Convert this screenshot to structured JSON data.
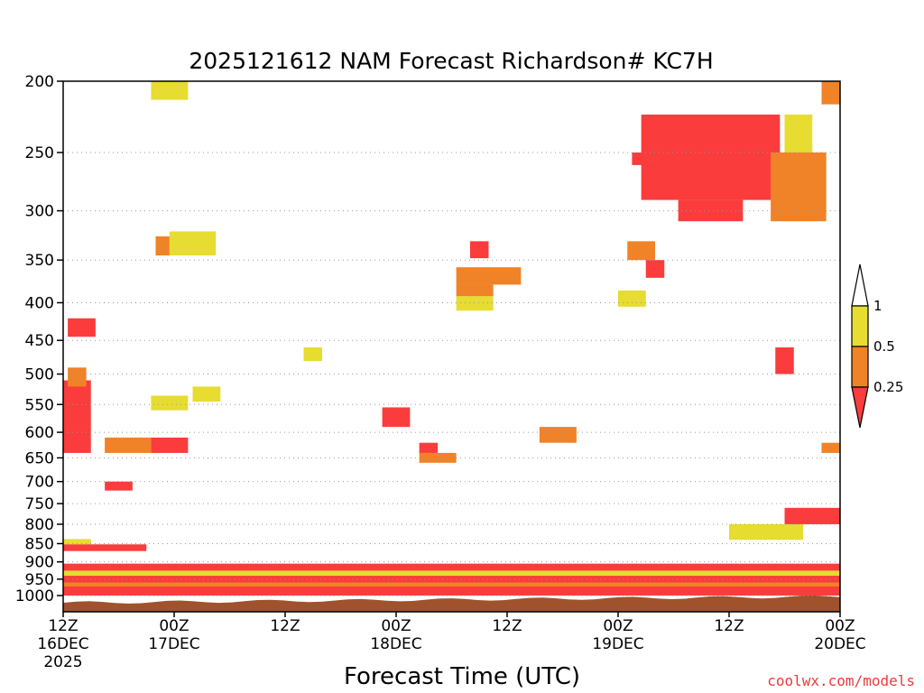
{
  "chart_data": {
    "type": "heatmap",
    "title": "2025121612 NAM Forecast Richardson# KC7H",
    "xlabel": "Forecast Time (UTC)",
    "ylabel": "",
    "x_range_hours": [
      0,
      84
    ],
    "xticks": [
      {
        "hour": 0,
        "time": "12Z",
        "date": "16DEC",
        "year": "2025"
      },
      {
        "hour": 12,
        "time": "00Z",
        "date": "17DEC",
        "year": ""
      },
      {
        "hour": 24,
        "time": "12Z",
        "date": "",
        "year": ""
      },
      {
        "hour": 36,
        "time": "00Z",
        "date": "18DEC",
        "year": ""
      },
      {
        "hour": 48,
        "time": "12Z",
        "date": "",
        "year": ""
      },
      {
        "hour": 60,
        "time": "00Z",
        "date": "19DEC",
        "year": ""
      },
      {
        "hour": 72,
        "time": "12Z",
        "date": "",
        "year": ""
      },
      {
        "hour": 84,
        "time": "00Z",
        "date": "20DEC",
        "year": ""
      }
    ],
    "y_axis": {
      "unit": "hPa",
      "scale": "log-pressure",
      "range": [
        200,
        1030
      ],
      "ticks": [
        200,
        250,
        300,
        350,
        400,
        450,
        500,
        550,
        600,
        650,
        700,
        750,
        800,
        850,
        900,
        950,
        1000
      ]
    },
    "grid": "dotted horizontal at pressure ticks",
    "legend": {
      "position": "right",
      "colorbar": [
        {
          "range": "0 - 0.25",
          "label": "0.25",
          "color": "#fa3c3c"
        },
        {
          "range": "0.25 - 0.5",
          "label": "0.5",
          "color": "#f08228"
        },
        {
          "range": "0.5 - 1",
          "label": "1",
          "color": "#e6dc32"
        },
        {
          "range": "> 1",
          "label": "",
          "color": "#ffffff"
        }
      ]
    },
    "ground_color": "#a0522d",
    "regions": [
      {
        "category": "0.5 - 1",
        "t": [
          0,
          3
        ],
        "p": [
          838,
          852
        ]
      },
      {
        "category": "0 - 0.25",
        "t": [
          0,
          9
        ],
        "p": [
          852,
          870
        ]
      },
      {
        "category": "0 - 0.25",
        "t": [
          0,
          84
        ],
        "p": [
          905,
          1000
        ]
      },
      {
        "category": "0.5 - 1",
        "t": [
          0,
          84
        ],
        "p": [
          925,
          940
        ]
      },
      {
        "category": "0.25 - 0.5",
        "t": [
          0,
          84
        ],
        "p": [
          960,
          972
        ]
      },
      {
        "category": "0 - 0.25",
        "t": [
          0,
          3
        ],
        "p": [
          510,
          640
        ]
      },
      {
        "category": "0 - 0.25",
        "t": [
          0.5,
          3.5
        ],
        "p": [
          420,
          445
        ]
      },
      {
        "category": "0.25 - 0.5",
        "t": [
          0.5,
          2.5
        ],
        "p": [
          490,
          520
        ]
      },
      {
        "category": "0.25 - 0.5",
        "t": [
          4.5,
          9.5
        ],
        "p": [
          610,
          640
        ]
      },
      {
        "category": "0 - 0.25",
        "t": [
          9.5,
          13.5
        ],
        "p": [
          610,
          640
        ]
      },
      {
        "category": "0.5 - 1",
        "t": [
          9.5,
          13.5
        ],
        "p": [
          535,
          560
        ]
      },
      {
        "category": "0 - 0.25",
        "t": [
          4.5,
          7.5
        ],
        "p": [
          700,
          720
        ]
      },
      {
        "category": "0.5 - 1",
        "t": [
          9.5,
          13.5
        ],
        "p": [
          200,
          212
        ]
      },
      {
        "category": "0.25 - 0.5",
        "t": [
          10,
          11.5
        ],
        "p": [
          325,
          345
        ]
      },
      {
        "category": "0.5 - 1",
        "t": [
          11.5,
          16.5
        ],
        "p": [
          320,
          345
        ]
      },
      {
        "category": "0.5 - 1",
        "t": [
          14,
          17
        ],
        "p": [
          520,
          545
        ]
      },
      {
        "category": "0.5 - 1",
        "t": [
          26,
          28
        ],
        "p": [
          460,
          480
        ]
      },
      {
        "category": "0.25 - 0.5",
        "t": [
          42.5,
          49.5
        ],
        "p": [
          358,
          378
        ]
      },
      {
        "category": "0.25 - 0.5",
        "t": [
          42.5,
          46.5
        ],
        "p": [
          378,
          392
        ]
      },
      {
        "category": "0.5 - 1",
        "t": [
          42.5,
          46.5
        ],
        "p": [
          392,
          410
        ]
      },
      {
        "category": "0 - 0.25",
        "t": [
          44,
          46
        ],
        "p": [
          330,
          348
        ]
      },
      {
        "category": "0 - 0.25",
        "t": [
          34.5,
          37.5
        ],
        "p": [
          555,
          590
        ]
      },
      {
        "category": "0.25 - 0.5",
        "t": [
          38.5,
          42.5
        ],
        "p": [
          640,
          660
        ]
      },
      {
        "category": "0 - 0.25",
        "t": [
          38.5,
          40.5
        ],
        "p": [
          620,
          640
        ]
      },
      {
        "category": "0.25 - 0.5",
        "t": [
          51.5,
          55.5
        ],
        "p": [
          590,
          620
        ]
      },
      {
        "category": "0 - 0.25",
        "t": [
          61.5,
          66.5
        ],
        "p": [
          250,
          260
        ]
      },
      {
        "category": "0 - 0.25",
        "t": [
          62.5,
          77.5
        ],
        "p": [
          222,
          290
        ]
      },
      {
        "category": "0 - 0.25",
        "t": [
          66.5,
          73.5
        ],
        "p": [
          290,
          310
        ]
      },
      {
        "category": "0.25 - 0.5",
        "t": [
          76.5,
          82.5
        ],
        "p": [
          250,
          310
        ]
      },
      {
        "category": "0.5 - 1",
        "t": [
          78,
          81
        ],
        "p": [
          222,
          250
        ]
      },
      {
        "category": "0.25 - 0.5",
        "t": [
          82,
          84
        ],
        "p": [
          200,
          215
        ]
      },
      {
        "category": "0.25 - 0.5",
        "t": [
          61,
          64
        ],
        "p": [
          330,
          350
        ]
      },
      {
        "category": "0 - 0.25",
        "t": [
          63,
          65
        ],
        "p": [
          350,
          370
        ]
      },
      {
        "category": "0.5 - 1",
        "t": [
          60,
          63
        ],
        "p": [
          385,
          405
        ]
      },
      {
        "category": "0 - 0.25",
        "t": [
          77,
          79
        ],
        "p": [
          460,
          500
        ]
      },
      {
        "category": "0.25 - 0.5",
        "t": [
          82,
          84
        ],
        "p": [
          620,
          640
        ]
      },
      {
        "category": "0 - 0.25",
        "t": [
          78,
          84
        ],
        "p": [
          760,
          800
        ]
      },
      {
        "category": "0.5 - 1",
        "t": [
          72,
          80
        ],
        "p": [
          800,
          840
        ]
      }
    ]
  },
  "credit": {
    "text": "coolwx.com/models",
    "color": "#e83c3c"
  }
}
